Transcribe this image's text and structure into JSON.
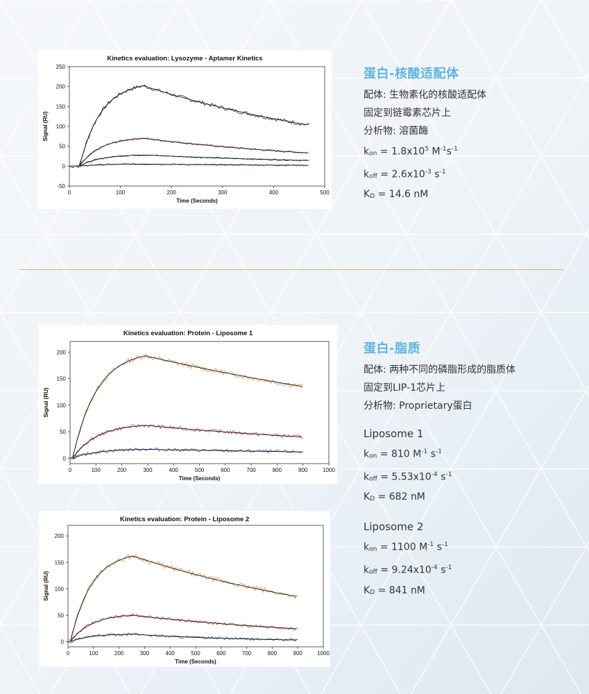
{
  "colors": {
    "accent": "#5fb4df",
    "divider": "#cdb26a",
    "text": "#333333"
  },
  "section1": {
    "title": "蛋白-核酸适配体",
    "lines": [
      "配体: 生物素化的核酸适配体",
      "固定到链霉素芯片上",
      "分析物: 溶菌酶"
    ],
    "kon": {
      "value": "1.8x10",
      "exp": "5",
      "unit": "M",
      "unit_exp": "-1",
      "unit2": "s",
      "unit2_exp": "-1"
    },
    "koff": {
      "value": "2.6x10",
      "exp": "-3",
      "unit": "s",
      "unit_exp": "-1"
    },
    "kd": {
      "value": "14.6 nM"
    }
  },
  "section2": {
    "title": "蛋白-脂质",
    "lines": [
      "配体: 两种不同的磷脂形成的脂质体",
      "固定到LIP-1芯片上",
      "分析物: Proprietary蛋白"
    ],
    "liposome1": {
      "name": "Liposome 1",
      "kon": {
        "value": "810",
        "unit": "M",
        "unit_exp": "-1",
        "unit2": "s",
        "unit2_exp": "-1"
      },
      "koff": {
        "value": "5.53x10",
        "exp": "-4",
        "unit": "s",
        "unit_exp": "-1"
      },
      "kd": {
        "value": "682 nM"
      }
    },
    "liposome2": {
      "name": "Liposome 2",
      "kon": {
        "value": "1100",
        "unit": "M",
        "unit_exp": "-1",
        "unit2": "s",
        "unit2_exp": "-1"
      },
      "koff": {
        "value": "9.24x10",
        "exp": "-4",
        "unit": "s",
        "unit_exp": "-1"
      },
      "kd": {
        "value": "841 nM"
      }
    }
  },
  "chart_data": [
    {
      "type": "line",
      "title": "Kinetics evaluation: Lysozyme - Aptamer Kinetics",
      "xlabel": "Time (Seconds)",
      "ylabel": "Signal (RU)",
      "xlim": [
        0,
        500
      ],
      "ylim": [
        -50,
        250
      ],
      "xticks": [
        0,
        100,
        200,
        300,
        400,
        500
      ],
      "yticks": [
        -50,
        0,
        50,
        100,
        150,
        200,
        250
      ],
      "assoc_end": 145,
      "end": 470,
      "series": [
        {
          "color": "#222222",
          "start": 20,
          "peak": 202,
          "final": 103,
          "noise": 5
        },
        {
          "color": "#c04a4a",
          "start": 20,
          "peak": 70,
          "final": 33,
          "noise": 3
        },
        {
          "color": "#3a4fa0",
          "start": 20,
          "peak": 28,
          "final": 14,
          "noise": 2
        },
        {
          "color": "#5f8f4e",
          "start": 20,
          "peak": 5,
          "final": 2,
          "noise": 2.5
        }
      ]
    },
    {
      "type": "line",
      "title": "Kinetics evaluation: Protein - Liposome 1",
      "xlabel": "Time (Seconds)",
      "ylabel": "Signal (RU)",
      "xlim": [
        0,
        1000
      ],
      "ylim": [
        -10,
        220
      ],
      "xticks": [
        0,
        100,
        200,
        300,
        400,
        500,
        600,
        700,
        800,
        900,
        1000
      ],
      "yticks": [
        0,
        50,
        100,
        150,
        200
      ],
      "assoc_end": 290,
      "end": 900,
      "series": [
        {
          "color": "#d9904a",
          "start": 10,
          "peak": 193,
          "final": 135,
          "noise": 5
        },
        {
          "color": "#c04a4a",
          "start": 10,
          "peak": 62,
          "final": 40,
          "noise": 3.5
        },
        {
          "color": "#3a4fa0",
          "start": 10,
          "peak": 17,
          "final": 12,
          "noise": 3
        }
      ]
    },
    {
      "type": "line",
      "title": "Kinetics evaluation: Protein - Liposome 2",
      "xlabel": "Time (Seconds)",
      "ylabel": "Signal (RU)",
      "xlim": [
        0,
        1000
      ],
      "ylim": [
        -10,
        220
      ],
      "xticks": [
        0,
        100,
        200,
        300,
        400,
        500,
        600,
        700,
        800,
        900,
        1000
      ],
      "yticks": [
        0,
        50,
        100,
        150,
        200
      ],
      "assoc_end": 255,
      "end": 900,
      "series": [
        {
          "color": "#d9904a",
          "start": 10,
          "peak": 162,
          "final": 85,
          "noise": 5
        },
        {
          "color": "#c04a4a",
          "start": 10,
          "peak": 50,
          "final": 24,
          "noise": 3
        },
        {
          "color": "#3a4fa0",
          "start": 10,
          "peak": 14,
          "final": 3,
          "noise": 2.5
        }
      ]
    }
  ]
}
